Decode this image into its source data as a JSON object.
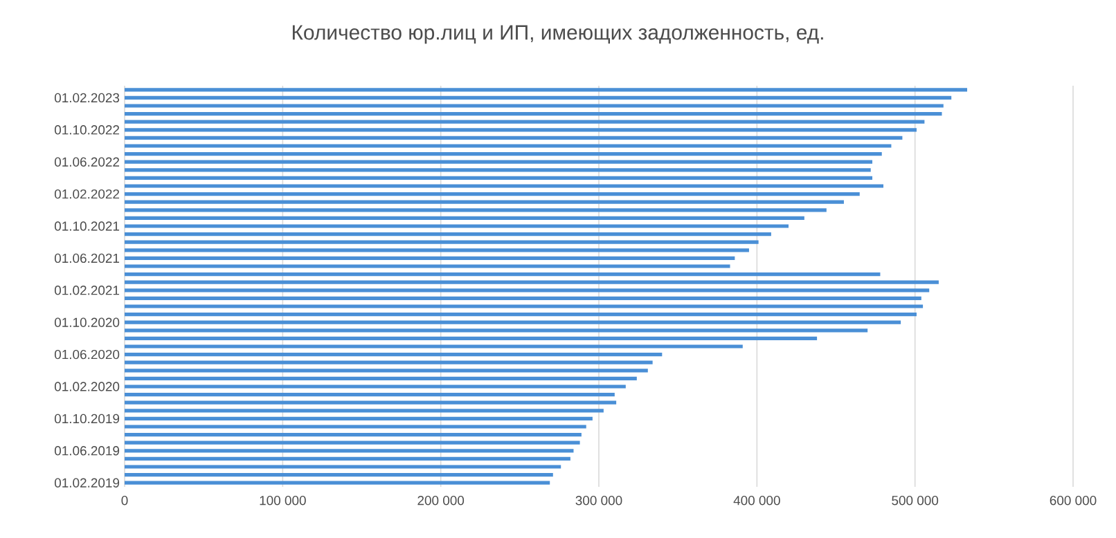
{
  "chart_data": {
    "type": "bar",
    "orientation": "horizontal",
    "title": "Количество юр.лиц и ИП, имеющих задолженность, ед.",
    "categories": [
      null,
      "01.02.2023",
      null,
      null,
      null,
      "01.10.2022",
      null,
      null,
      null,
      "01.06.2022",
      null,
      null,
      null,
      "01.02.2022",
      null,
      null,
      null,
      "01.10.2021",
      null,
      null,
      null,
      "01.06.2021",
      null,
      null,
      null,
      "01.02.2021",
      null,
      null,
      null,
      "01.10.2020",
      null,
      null,
      null,
      "01.06.2020",
      null,
      null,
      null,
      "01.02.2020",
      null,
      null,
      null,
      "01.10.2019",
      null,
      null,
      null,
      "01.06.2019",
      null,
      null,
      null,
      "01.02.2019"
    ],
    "values": [
      533000,
      523000,
      518000,
      517000,
      506000,
      501000,
      492000,
      485000,
      479000,
      473000,
      472000,
      473000,
      480000,
      465000,
      455000,
      444000,
      430000,
      420000,
      409000,
      401000,
      395000,
      386000,
      383000,
      478000,
      515000,
      509000,
      504000,
      505000,
      501000,
      491000,
      470000,
      438000,
      391000,
      340000,
      334000,
      331000,
      324000,
      317000,
      310000,
      311000,
      303000,
      296000,
      292000,
      289000,
      288000,
      284000,
      282000,
      276000,
      271000,
      269000
    ],
    "color": "#4a8fd6",
    "xlim": [
      0,
      600000
    ],
    "xticks": [
      0,
      {
        "value": 100000,
        "label": "100 000"
      },
      {
        "value": 200000,
        "label": "200 000"
      },
      {
        "value": 300000,
        "label": "300 000"
      },
      {
        "value": 400000,
        "label": "400 000"
      },
      {
        "value": 500000,
        "label": "500 000"
      },
      {
        "value": 600000,
        "label": "600 000"
      }
    ],
    "grid": "x"
  }
}
